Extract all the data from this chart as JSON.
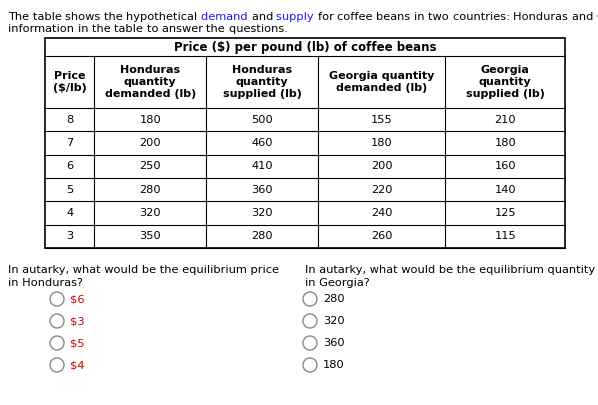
{
  "intro_line1": "The table shows the hypothetical demand and supply for coffee beans in two countries: Honduras and Georgia. Use the",
  "intro_line2": "information in the table to answer the questions.",
  "intro_color_words": [
    "demand",
    "supply"
  ],
  "table_title": "Price ($) per pound (lb) of coffee beans",
  "col_headers": [
    "Price\n($/lb)",
    "Honduras\nquantity\ndemanded (lb)",
    "Honduras\nquantity\nsupplied (lb)",
    "Georgia quantity\ndemanded (lb)",
    "Georgia\nquantity\nsupplied (lb)"
  ],
  "rows": [
    [
      "8",
      "180",
      "500",
      "155",
      "210"
    ],
    [
      "7",
      "200",
      "460",
      "180",
      "180"
    ],
    [
      "6",
      "250",
      "410",
      "200",
      "160"
    ],
    [
      "5",
      "280",
      "360",
      "220",
      "140"
    ],
    [
      "4",
      "320",
      "320",
      "240",
      "125"
    ],
    [
      "3",
      "350",
      "280",
      "260",
      "115"
    ]
  ],
  "q1_line1": "In autarky, what would be the equilibrium price",
  "q1_line2": "in Honduras?",
  "q1_options": [
    "$6",
    "$3",
    "$5",
    "$4"
  ],
  "q1_opt_colors": [
    "#cc0000",
    "#cc0000",
    "#cc0000",
    "#cc0000"
  ],
  "q2_line1": "In autarky, what would be the equilibrium quantity",
  "q2_line2": "in Georgia?",
  "q2_options": [
    "280",
    "320",
    "360",
    "180"
  ],
  "bg_color": "#ffffff",
  "text_color": "#000000",
  "blue_color": "#1a1aff",
  "red_color": "#cc0000",
  "gray_color": "#888888"
}
